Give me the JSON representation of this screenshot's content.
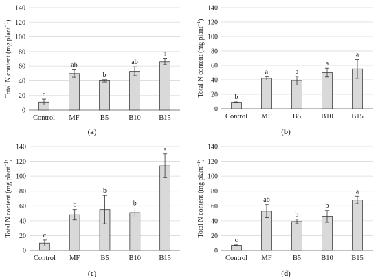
{
  "figure": {
    "ylabel_main": "Total N content (mg plant",
    "ylabel_sup": "−1",
    "ylabel_close": ")"
  },
  "colors": {
    "bar_fill": "#d9d9d9",
    "bar_stroke": "#404040",
    "grid": "#d9d9d9",
    "axis": "#808080"
  },
  "chart_data": [
    {
      "type": "bar",
      "panel": "(a)",
      "categories": [
        "Control",
        "MF",
        "B5",
        "B10",
        "B15"
      ],
      "values": [
        11,
        50,
        40,
        53,
        66
      ],
      "errors": [
        4,
        5,
        1.5,
        6,
        4
      ],
      "significance": [
        "c",
        "ab",
        "b",
        "ab",
        "a"
      ],
      "ylabel": "Total N content (mg plant−1)",
      "ylim": [
        0,
        140
      ],
      "yticks": [
        0,
        20,
        40,
        60,
        80,
        100,
        120,
        140
      ],
      "grid": "horizontal"
    },
    {
      "type": "bar",
      "panel": "(b)",
      "categories": [
        "Control",
        "MF",
        "B5",
        "B10",
        "B15"
      ],
      "values": [
        9,
        42,
        39,
        50,
        55
      ],
      "errors": [
        0.5,
        2.5,
        6,
        6,
        13
      ],
      "significance": [
        "b",
        "a",
        "a",
        "a",
        "a"
      ],
      "ylabel": "Total N content (mg plant−1)",
      "ylim": [
        0,
        140
      ],
      "yticks": [
        0,
        20,
        40,
        60,
        80,
        100,
        120,
        140
      ],
      "grid": "horizontal"
    },
    {
      "type": "bar",
      "panel": "(c)",
      "categories": [
        "Control",
        "MF",
        "B5",
        "B10",
        "B15"
      ],
      "values": [
        10,
        48,
        55,
        51,
        114
      ],
      "errors": [
        4,
        7,
        19,
        6,
        16
      ],
      "significance": [
        "c",
        "b",
        "b",
        "b",
        "a"
      ],
      "ylabel": "Total N content (mg plant−1)",
      "ylim": [
        0,
        140
      ],
      "yticks": [
        0,
        20,
        40,
        60,
        80,
        100,
        120,
        140
      ],
      "grid": "horizontal"
    },
    {
      "type": "bar",
      "panel": "(d)",
      "categories": [
        "Control",
        "MF",
        "B5",
        "B10",
        "B15"
      ],
      "values": [
        7,
        53,
        39,
        46,
        68
      ],
      "errors": [
        0.5,
        9,
        3,
        8,
        5
      ],
      "significance": [
        "c",
        "ab",
        "b",
        "b",
        "a"
      ],
      "ylabel": "Total N content (mg plant−1)",
      "ylim": [
        0,
        140
      ],
      "yticks": [
        0,
        20,
        40,
        60,
        80,
        100,
        120,
        140
      ],
      "grid": "horizontal"
    }
  ]
}
